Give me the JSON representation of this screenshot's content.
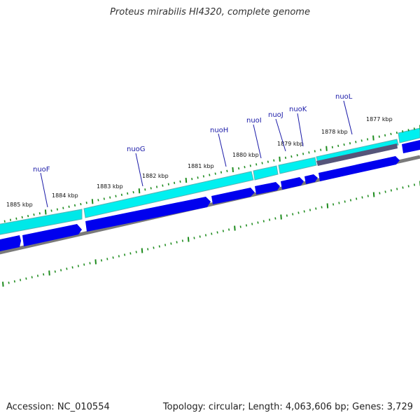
{
  "title": "Proteus mirabilis HI4320, complete genome",
  "footer": {
    "accession": "Accession: NC_010554",
    "summary": "Topology: circular; Length: 4,063,606 bp; Genes: 3,729"
  },
  "colors": {
    "cds_forward": "#00ffff",
    "cds_reverse": "#0000ff",
    "gene_label": "#1a1aa8",
    "tick": "#1e8c1e",
    "backbone": "#808080",
    "highlight": "#55557a"
  },
  "scale_labels": [
    "1877 kbp",
    "1878 kbp",
    "1879 kbp",
    "1880 kbp",
    "1881 kbp",
    "1882 kbp",
    "1883 kbp",
    "1884 kbp",
    "1885 kbp"
  ],
  "gene_labels": [
    "nuoF",
    "nuoG",
    "nuoH",
    "nuoI",
    "nuoJ",
    "nuoK",
    "nuoL"
  ]
}
